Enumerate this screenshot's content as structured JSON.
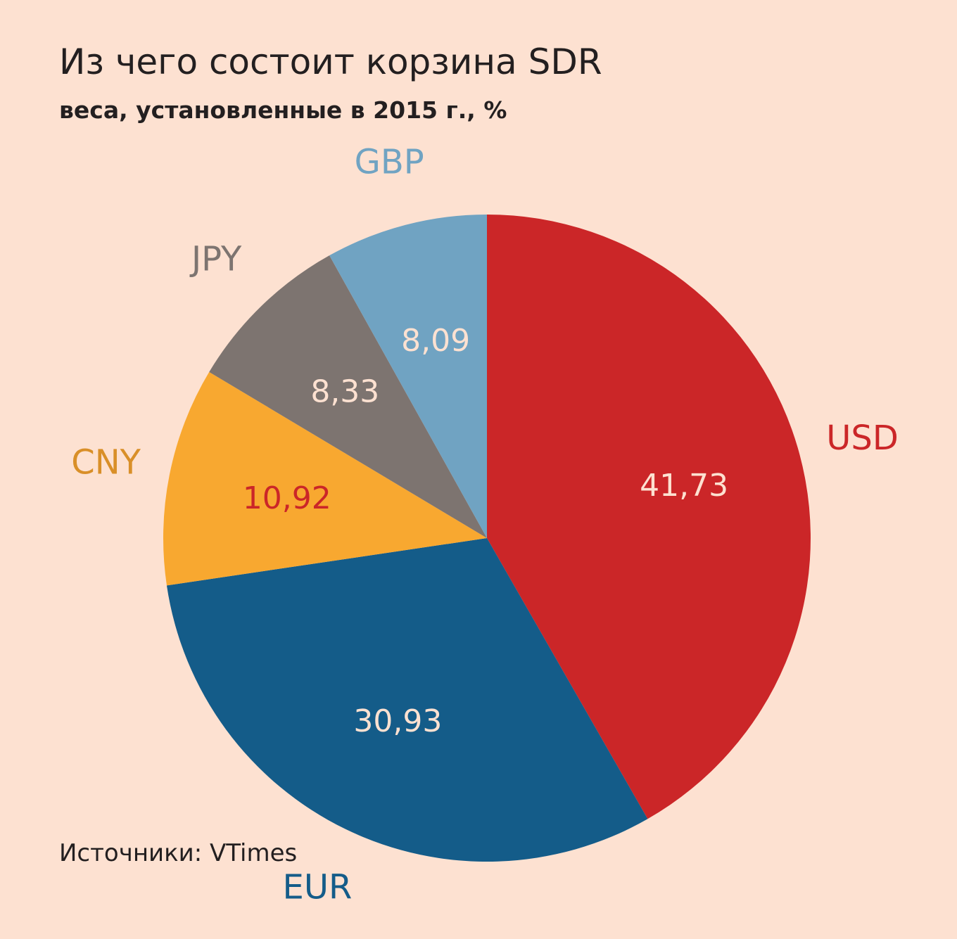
{
  "title": "Из чего состоит корзина SDR",
  "subtitle": "веса, установленные в 2015 г., %",
  "source": "Источники: VTimes",
  "chart_data": {
    "type": "pie",
    "title": "Из чего состоит корзина SDR",
    "subtitle": "веса, установленные в 2015 г., %",
    "start": "12 o'clock",
    "direction": "clockwise",
    "slices": [
      {
        "name": "USD",
        "value": 41.73,
        "label": "41,73",
        "color": "#cb2628",
        "name_color": "#cb2628",
        "value_color": "#fde1d1"
      },
      {
        "name": "EUR",
        "value": 30.93,
        "label": "30,93",
        "color": "#145c89",
        "name_color": "#145c89",
        "value_color": "#fde1d1"
      },
      {
        "name": "CNY",
        "value": 10.92,
        "label": "10,92",
        "color": "#f8a830",
        "name_color": "#d98f28",
        "value_color": "#cb2628"
      },
      {
        "name": "JPY",
        "value": 8.33,
        "label": "8,33",
        "color": "#7d7470",
        "name_color": "#7d7470",
        "value_color": "#fde1d1"
      },
      {
        "name": "GBP",
        "value": 8.09,
        "label": "8,09",
        "color": "#70a3c2",
        "name_color": "#70a3c2",
        "value_color": "#fde1d1"
      }
    ]
  }
}
